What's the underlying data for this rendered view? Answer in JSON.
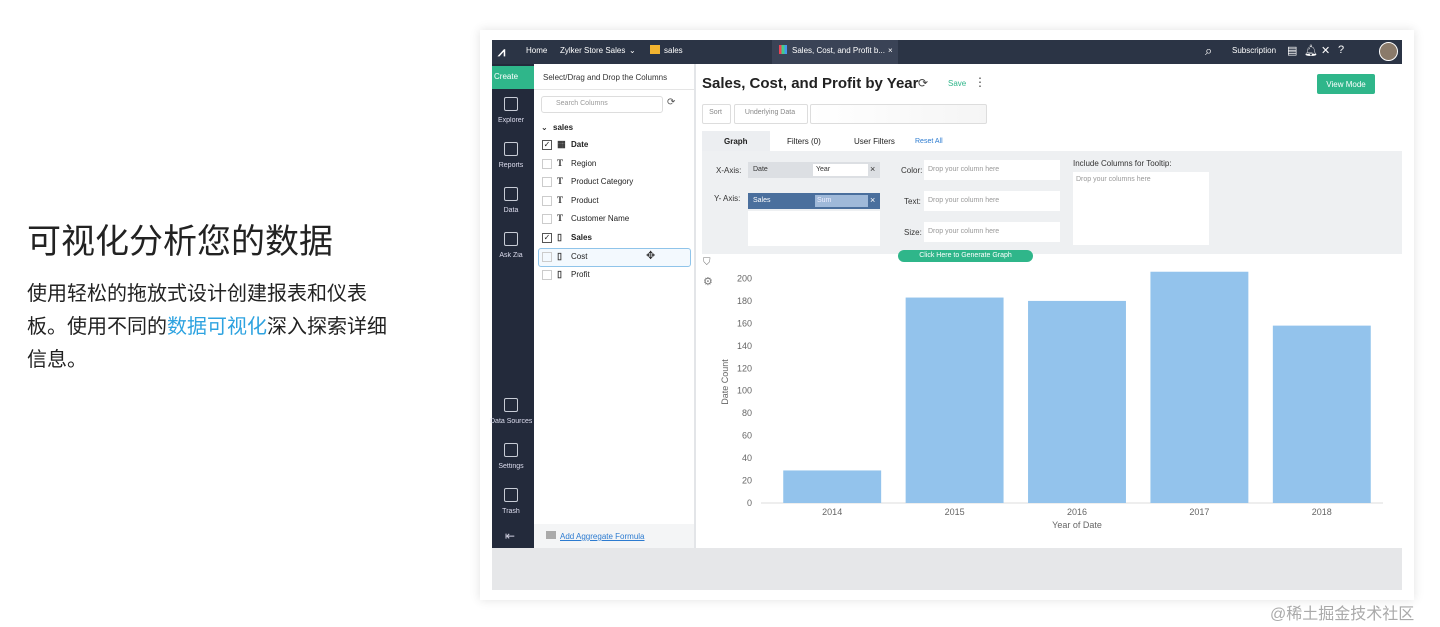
{
  "intro": {
    "title": "可视化分析您的数据",
    "text_before": "使用轻松的拖放式设计创建报表和仪表板。使用不同的",
    "link": "数据可视化",
    "text_after": "深入探索详细信息。"
  },
  "topbar": {
    "home": "Home",
    "workspace": "Zylker Store Sales",
    "table": "sales",
    "tab": "Sales, Cost, and Profit b...",
    "subscription": "Subscription"
  },
  "sidebar": {
    "create": "Create",
    "items": [
      "Explorer",
      "Reports",
      "Data",
      "Ask Zia"
    ],
    "bottom": [
      "Data Sources",
      "Settings",
      "Trash"
    ]
  },
  "columns": {
    "header": "Select/Drag and Drop the Columns",
    "search": "Search Columns",
    "table": "sales",
    "fields": [
      {
        "name": "Date",
        "icon": "date",
        "checked": true
      },
      {
        "name": "Region",
        "icon": "text",
        "checked": false
      },
      {
        "name": "Product Category",
        "icon": "text",
        "checked": false
      },
      {
        "name": "Product",
        "icon": "text",
        "checked": false
      },
      {
        "name": "Customer Name",
        "icon": "text",
        "checked": false
      },
      {
        "name": "Sales",
        "icon": "number",
        "checked": true
      },
      {
        "name": "Cost",
        "icon": "number",
        "checked": false,
        "selected": true
      },
      {
        "name": "Profit",
        "icon": "number",
        "checked": false
      }
    ],
    "footer": "Add Aggregate Formula"
  },
  "report": {
    "title": "Sales, Cost, and Profit by Year",
    "save": "Save",
    "view_mode": "View Mode",
    "toolbar": [
      "Sort",
      "Underlying Data"
    ],
    "tabs": [
      "Graph",
      "Filters (0)",
      "User Filters"
    ],
    "reset": "Reset All",
    "shelves": {
      "x_label": "X-Axis:",
      "x_field": "Date",
      "x_agg": "Year",
      "y_label": "Y- Axis:",
      "y_field": "Sales",
      "y_agg": "Sum",
      "color_label": "Color:",
      "text_label": "Text:",
      "size_label": "Size:",
      "placeholder": "Drop your column here",
      "tooltip_label": "Include Columns for Tooltip:",
      "tooltip_placeholder": "Drop your columns here"
    },
    "generate": "Click Here to Generate Graph"
  },
  "chart_data": {
    "type": "bar",
    "categories": [
      "2014",
      "2015",
      "2016",
      "2017",
      "2018"
    ],
    "values": [
      29,
      183,
      180,
      206,
      158
    ],
    "color": "#93c3ec",
    "ylim": [
      0,
      212
    ],
    "yticks": [
      0,
      20,
      40,
      60,
      80,
      100,
      120,
      140,
      160,
      180,
      200
    ],
    "xlabel": "Year of Date",
    "ylabel": "Date Count"
  },
  "watermark": "@稀土掘金技术社区"
}
